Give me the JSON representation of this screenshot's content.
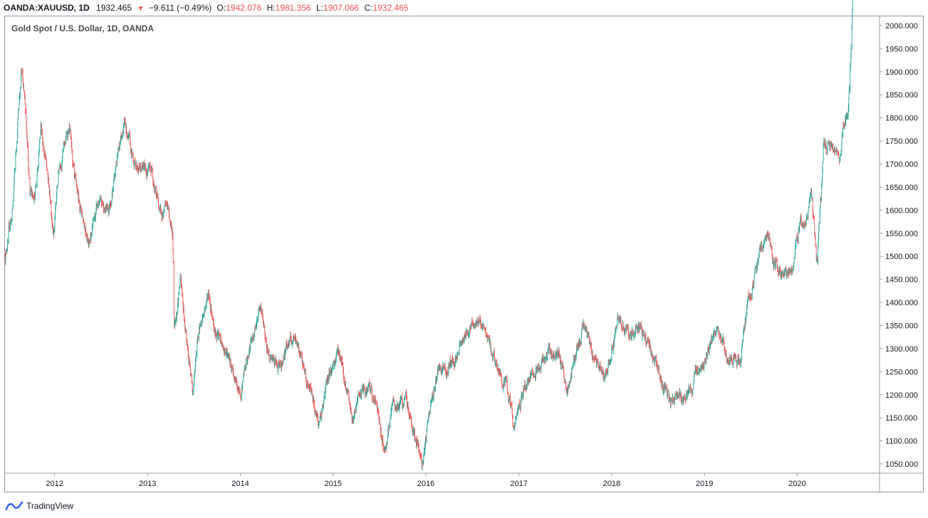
{
  "header": {
    "symbol": "OANDA:XAUUSD, 1D",
    "last": "1932.465",
    "change": "−9.611 (−0.49%)",
    "o_label": "O:",
    "o_value": "1942.076",
    "h_label": "H:",
    "h_value": "1981.356",
    "l_label": "L:",
    "l_value": "1907.066",
    "c_label": "C:",
    "c_value": "1932.465"
  },
  "legend": "Gold Spot / U.S. Dollar, 1D, OANDA",
  "footer": {
    "brand": "TradingView"
  },
  "colors": {
    "up": "#26a69a",
    "down": "#ef5350",
    "accent": "#2962ff"
  },
  "chart_data": {
    "type": "line",
    "title": "Gold Spot / U.S. Dollar, 1D, OANDA",
    "xlabel": "",
    "ylabel": "",
    "candles": "daily OHLC (up green, down red)",
    "xlim": [
      "2011-06-20",
      "2020-11-20"
    ],
    "ylim": [
      1030,
      2020
    ],
    "x_ticks": [
      "2012",
      "2013",
      "2014",
      "2015",
      "2016",
      "2017",
      "2018",
      "2019",
      "2020"
    ],
    "y_ticks": [
      "1050.000",
      "1100.000",
      "1150.000",
      "1200.000",
      "1250.000",
      "1300.000",
      "1350.000",
      "1400.000",
      "1450.000",
      "1500.000",
      "1550.000",
      "1600.000",
      "1650.000",
      "1700.000",
      "1750.000",
      "1800.000",
      "1850.000",
      "1900.000",
      "1950.000",
      "2000.000"
    ],
    "series": [
      {
        "x": [
          "2011-06-20",
          "2011-07-20",
          "2011-08-10",
          "2011-08-23",
          "2011-09-06",
          "2011-09-26",
          "2011-10-20",
          "2011-11-08",
          "2011-12-29",
          "2012-01-20",
          "2012-02-28",
          "2012-03-20",
          "2012-05-16",
          "2012-06-20",
          "2012-08-01",
          "2012-09-20",
          "2012-10-05",
          "2012-11-01",
          "2012-12-05",
          "2013-01-20",
          "2013-02-20",
          "2013-03-20",
          "2013-04-10",
          "2013-04-16",
          "2013-05-10",
          "2013-06-27",
          "2013-07-20",
          "2013-08-28",
          "2013-10-01",
          "2013-11-10",
          "2013-12-31",
          "2014-01-20",
          "2014-03-17",
          "2014-04-20",
          "2014-06-01",
          "2014-07-10",
          "2014-08-20",
          "2014-10-01",
          "2014-11-07",
          "2014-12-10",
          "2015-01-22",
          "2015-03-17",
          "2015-04-20",
          "2015-05-18",
          "2015-06-20",
          "2015-07-24",
          "2015-08-24",
          "2015-10-14",
          "2015-12-17",
          "2016-02-11",
          "2016-03-20",
          "2016-05-02",
          "2016-07-06",
          "2016-08-20",
          "2016-10-07",
          "2016-11-10",
          "2016-12-15",
          "2017-01-20",
          "2017-03-15",
          "2017-04-17",
          "2017-06-06",
          "2017-07-10",
          "2017-09-08",
          "2017-10-20",
          "2017-12-12",
          "2018-01-25",
          "2018-03-20",
          "2018-04-20",
          "2018-06-01",
          "2018-08-16",
          "2018-10-01",
          "2018-11-10",
          "2019-01-01",
          "2019-02-20",
          "2019-04-01",
          "2019-05-20",
          "2019-06-25",
          "2019-08-10",
          "2019-09-04",
          "2019-10-01",
          "2019-11-12",
          "2019-12-15",
          "2020-01-08",
          "2020-02-10",
          "2020-02-24",
          "2020-03-19",
          "2020-04-14",
          "2020-05-15",
          "2020-06-15",
          "2020-07-01",
          "2020-07-20",
          "2020-08-01",
          "2020-08-06"
        ],
        "y": [
          1500,
          1600,
          1800,
          1900,
          1850,
          1620,
          1650,
          1790,
          1560,
          1700,
          1780,
          1650,
          1540,
          1610,
          1600,
          1770,
          1790,
          1710,
          1690,
          1685,
          1590,
          1605,
          1550,
          1350,
          1450,
          1200,
          1330,
          1420,
          1330,
          1280,
          1200,
          1260,
          1390,
          1290,
          1250,
          1320,
          1300,
          1210,
          1140,
          1230,
          1300,
          1150,
          1200,
          1210,
          1180,
          1080,
          1170,
          1185,
          1050,
          1240,
          1250,
          1290,
          1365,
          1340,
          1255,
          1220,
          1130,
          1210,
          1250,
          1290,
          1290,
          1210,
          1350,
          1280,
          1240,
          1360,
          1320,
          1350,
          1300,
          1180,
          1200,
          1215,
          1285,
          1340,
          1290,
          1270,
          1410,
          1510,
          1555,
          1480,
          1460,
          1480,
          1560,
          1580,
          1650,
          1480,
          1730,
          1735,
          1725,
          1780,
          1820,
          1960,
          2060
        ]
      }
    ]
  }
}
